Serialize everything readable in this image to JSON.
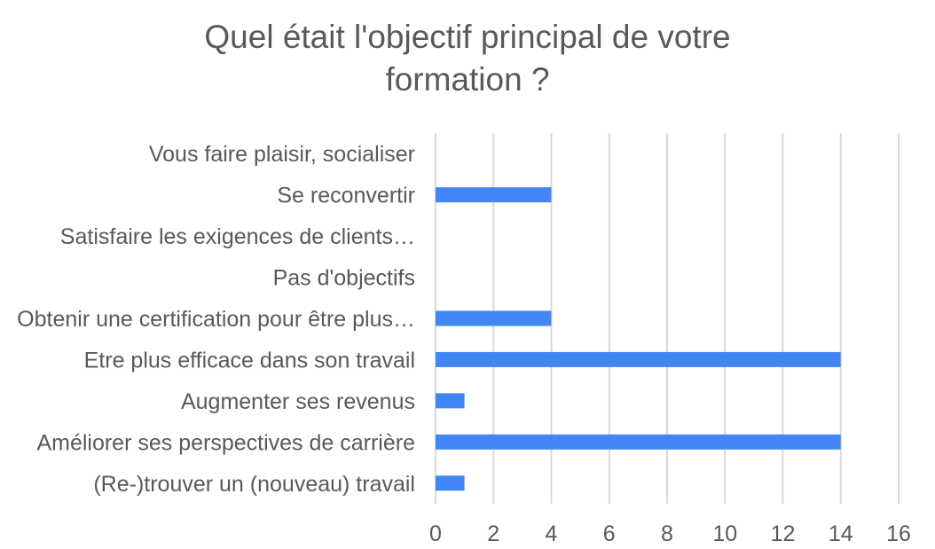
{
  "chart_data": {
    "type": "bar",
    "orientation": "horizontal",
    "title_lines": [
      "Quel était l'objectif principal de votre",
      "formation ?"
    ],
    "categories": [
      "(Re-)trouver un (nouveau) travail",
      "Améliorer ses perspectives de carrière",
      "Augmenter ses revenus",
      "Etre plus efficace dans son travail",
      "Obtenir une certification pour être plus…",
      "Pas d'objectifs",
      "Satisfaire les exigences de clients…",
      "Se reconvertir",
      "Vous faire plaisir, socialiser"
    ],
    "values": [
      1,
      14,
      1,
      14,
      4,
      0,
      0,
      4,
      0
    ],
    "xlim": [
      0,
      16
    ],
    "xticks": [
      0,
      2,
      4,
      6,
      8,
      10,
      12,
      14,
      16
    ],
    "grid": "vertical",
    "legend": "none",
    "bar_color": "#4285f4",
    "grid_color": "#d9d9d9",
    "text_color": "#595959"
  }
}
